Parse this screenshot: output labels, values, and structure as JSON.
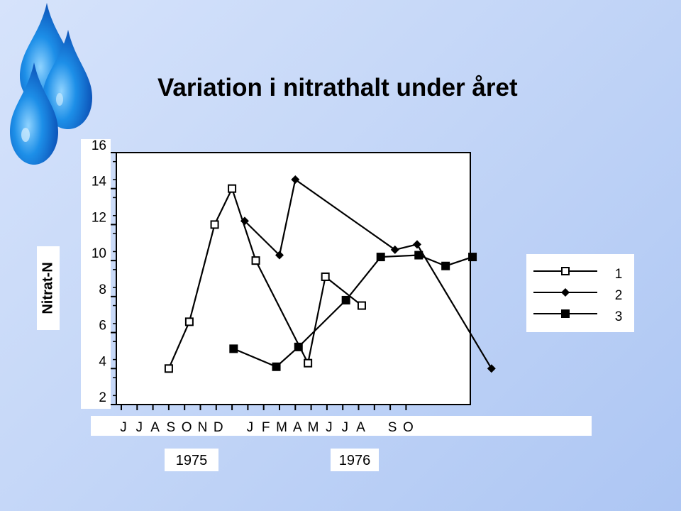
{
  "chart_data": {
    "type": "line",
    "title": "Variation i nitrathalt under året",
    "ylabel": "Nitrat-N",
    "xlabel": "",
    "ylim": [
      2,
      16
    ],
    "y_ticks": [
      "2",
      "4",
      "6",
      "8",
      "10",
      "12",
      "14",
      "16"
    ],
    "x_ticks": [
      "J",
      "J",
      "A",
      "S",
      "O",
      "N",
      "D",
      "",
      "J",
      "F",
      "M",
      "A",
      "M",
      "J",
      "J",
      "A",
      "",
      "S",
      "O"
    ],
    "years": [
      "1975",
      "1976"
    ],
    "grid": false,
    "legend_position": "right",
    "series": [
      {
        "name": "1",
        "marker": "open-square",
        "points": [
          {
            "x": 3.0,
            "y": 4.0
          },
          {
            "x": 4.3,
            "y": 6.6
          },
          {
            "x": 5.9,
            "y": 12.0
          },
          {
            "x": 7.0,
            "y": 14.0
          },
          {
            "x": 8.5,
            "y": 10.0
          },
          {
            "x": 11.8,
            "y": 4.3
          },
          {
            "x": 12.9,
            "y": 9.1
          },
          {
            "x": 15.2,
            "y": 7.5
          }
        ]
      },
      {
        "name": "2",
        "marker": "filled-diamond",
        "points": [
          {
            "x": 7.8,
            "y": 12.2
          },
          {
            "x": 10.0,
            "y": 10.3
          },
          {
            "x": 11.0,
            "y": 14.5
          },
          {
            "x": 17.3,
            "y": 10.6
          },
          {
            "x": 18.7,
            "y": 10.9
          },
          {
            "x": 23.4,
            "y": 4.0
          }
        ]
      },
      {
        "name": "3",
        "marker": "filled-square",
        "points": [
          {
            "x": 7.1,
            "y": 5.1
          },
          {
            "x": 9.8,
            "y": 4.1
          },
          {
            "x": 11.2,
            "y": 5.2
          },
          {
            "x": 14.2,
            "y": 7.8
          },
          {
            "x": 16.4,
            "y": 10.2
          },
          {
            "x": 18.8,
            "y": 10.3
          },
          {
            "x": 20.5,
            "y": 9.7
          },
          {
            "x": 22.2,
            "y": 10.2
          }
        ]
      }
    ],
    "colors": {
      "line": "#000000",
      "background": "#c8d9f7"
    }
  }
}
